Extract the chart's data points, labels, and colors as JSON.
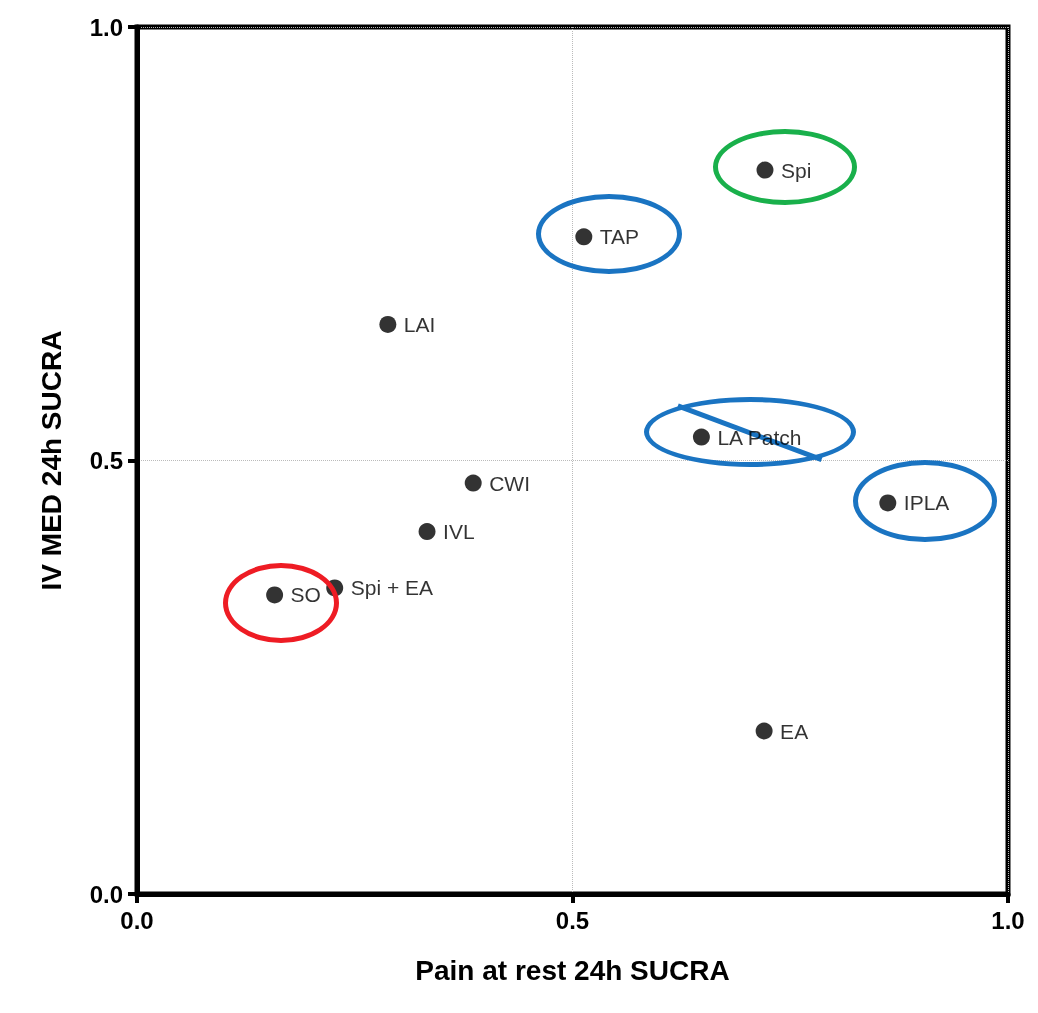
{
  "chart_data": {
    "type": "scatter",
    "xlabel": "Pain at rest 24h SUCRA",
    "ylabel": "IV MED 24h SUCRA",
    "xlim": [
      0,
      1
    ],
    "ylim": [
      0,
      1
    ],
    "xticks": [
      {
        "value": 0,
        "label": "0.0"
      },
      {
        "value": 0.5,
        "label": "0.5"
      },
      {
        "value": 1,
        "label": "1.0"
      }
    ],
    "yticks": [
      {
        "value": 0,
        "label": "0.0"
      },
      {
        "value": 0.5,
        "label": "0.5"
      },
      {
        "value": 1,
        "label": "1.0"
      }
    ],
    "grid": true,
    "marker": "circle",
    "series": [
      {
        "color": "#000000",
        "x": [
          0.721,
          0.513,
          0.288,
          0.648,
          0.862,
          0.386,
          0.333,
          0.227,
          0.158,
          0.72
        ],
        "values": [
          0.835,
          0.758,
          0.657,
          0.527,
          0.451,
          0.474,
          0.418,
          0.353,
          0.345,
          0.188
        ]
      },
      {
        "type": "line",
        "color": "#1a74c2",
        "marker": "none",
        "x": [
          0.621,
          0.786
        ],
        "values": [
          0.563,
          0.501
        ]
      }
    ],
    "annotations": [
      {
        "text": "Spi",
        "x": 0.721,
        "y": 0.835
      },
      {
        "text": "TAP",
        "x": 0.513,
        "y": 0.758
      },
      {
        "text": "LAI",
        "x": 0.288,
        "y": 0.657
      },
      {
        "text": "LA Patch",
        "x": 0.648,
        "y": 0.527
      },
      {
        "text": "IPLA",
        "x": 0.862,
        "y": 0.451
      },
      {
        "text": "CWI",
        "x": 0.386,
        "y": 0.474
      },
      {
        "text": "IVL",
        "x": 0.333,
        "y": 0.418
      },
      {
        "text": "Spi + EA",
        "x": 0.227,
        "y": 0.353
      },
      {
        "text": "SO",
        "x": 0.158,
        "y": 0.345
      },
      {
        "text": "EA",
        "x": 0.72,
        "y": 0.188
      }
    ]
  }
}
